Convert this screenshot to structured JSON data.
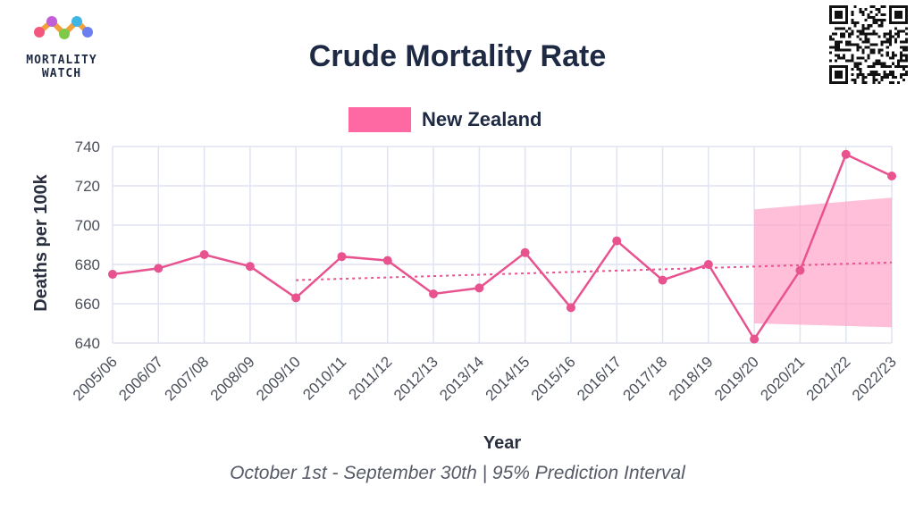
{
  "brand": {
    "line1": "MORTALITY",
    "line2": "WATCH"
  },
  "qr_icon": "qr-code-icon",
  "chart_data": {
    "type": "line",
    "title": "Crude Mortality Rate",
    "subtitle": "October 1st - September 30th | 95% Prediction Interval",
    "xlabel": "Year",
    "ylabel": "Deaths per 100k",
    "ylim": [
      636,
      742
    ],
    "yticks": [
      640,
      660,
      680,
      700,
      720,
      740
    ],
    "categories": [
      "2005/06",
      "2006/07",
      "2007/08",
      "2008/09",
      "2009/10",
      "2010/11",
      "2011/12",
      "2012/13",
      "2013/14",
      "2014/15",
      "2015/16",
      "2016/17",
      "2017/18",
      "2018/19",
      "2019/20",
      "2020/21",
      "2021/22",
      "2022/23"
    ],
    "series": [
      {
        "name": "New Zealand",
        "color": "#e8538f",
        "values": [
          675,
          678,
          685,
          679,
          663,
          684,
          682,
          665,
          668,
          686,
          658,
          692,
          672,
          680,
          642,
          677,
          736,
          725
        ]
      }
    ],
    "baseline": {
      "name": "Baseline",
      "start_index": 4,
      "end_index": 17,
      "start_value": 672,
      "end_value": 681
    },
    "prediction_interval": {
      "name": "95% Prediction Interval",
      "start_index": 14,
      "end_index": 17,
      "lower_start": 650,
      "lower_end": 648,
      "upper_start": 708,
      "upper_end": 714
    },
    "legend": "top-center",
    "grid": true
  }
}
